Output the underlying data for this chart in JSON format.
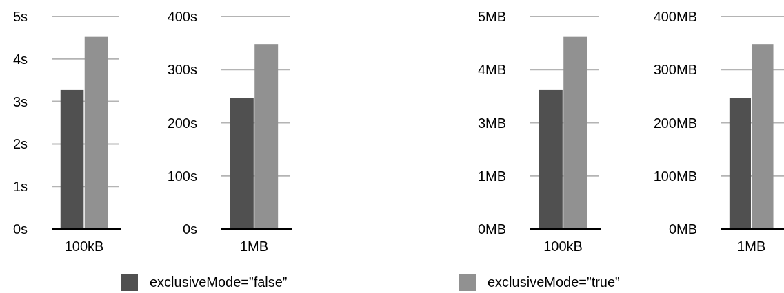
{
  "chart_data": [
    {
      "type": "bar",
      "categories": [
        "100kB"
      ],
      "series": [
        {
          "name": "exclusiveMode=”false”",
          "color": "#505050",
          "values": [
            3.27
          ]
        },
        {
          "name": "exclusiveMode=”true”",
          "color": "#919191",
          "values": [
            4.52
          ]
        }
      ],
      "ylim": [
        0,
        5
      ],
      "yticks": [
        {
          "value": 0,
          "label": "0s"
        },
        {
          "value": 1,
          "label": "1s"
        },
        {
          "value": 2,
          "label": "2s"
        },
        {
          "value": 3,
          "label": "3s"
        },
        {
          "value": 4,
          "label": "4s"
        },
        {
          "value": 5,
          "label": "5s"
        }
      ],
      "grid": "y",
      "legend": "bottom"
    },
    {
      "type": "bar",
      "categories": [
        "1MB"
      ],
      "series": [
        {
          "color": "#505050",
          "values": [
            247
          ]
        },
        {
          "color": "#919191",
          "values": [
            348
          ]
        }
      ],
      "ylim": [
        0,
        400
      ],
      "yticks": [
        {
          "value": 0,
          "label": "0s"
        },
        {
          "value": 100,
          "label": "100s"
        },
        {
          "value": 200,
          "label": "200s"
        },
        {
          "value": 300,
          "label": "300s"
        },
        {
          "value": 400,
          "label": "400s"
        }
      ],
      "grid": "y"
    },
    {
      "type": "bar",
      "categories": [
        "100kB"
      ],
      "series": [
        {
          "color": "#505050",
          "values": [
            3.27
          ]
        },
        {
          "color": "#919191",
          "values": [
            4.52
          ]
        }
      ],
      "ylim": [
        0,
        5
      ],
      "yticks": [
        {
          "value": 0,
          "label": "0MB"
        },
        {
          "value": 1.25,
          "label": "1MB"
        },
        {
          "value": 2.5,
          "label": "3MB"
        },
        {
          "value": 3.75,
          "label": "4MB"
        },
        {
          "value": 5,
          "label": "5MB"
        }
      ],
      "grid": "y"
    },
    {
      "type": "bar",
      "categories": [
        "1MB"
      ],
      "series": [
        {
          "color": "#505050",
          "values": [
            247
          ]
        },
        {
          "color": "#919191",
          "values": [
            348
          ]
        }
      ],
      "ylim": [
        0,
        400
      ],
      "yticks": [
        {
          "value": 0,
          "label": "0MB"
        },
        {
          "value": 100,
          "label": "100MB"
        },
        {
          "value": 200,
          "label": "200MB"
        },
        {
          "value": 300,
          "label": "300MB"
        },
        {
          "value": 400,
          "label": "400MB"
        }
      ],
      "grid": "y"
    }
  ]
}
